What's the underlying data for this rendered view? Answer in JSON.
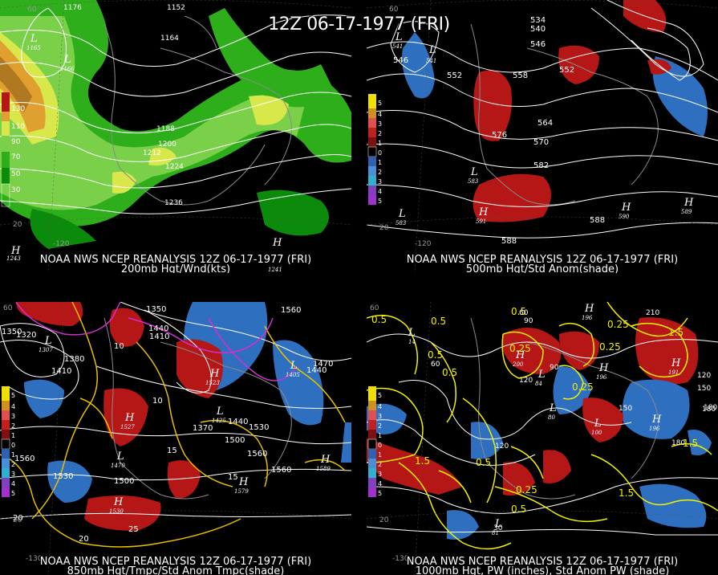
{
  "title": "12Z 06-17-1977 (FRI)",
  "panels": [
    {
      "caption1": "NOAA NWS NCEP REANALYSIS 12Z 06-17-1977 (FRI)",
      "caption2": "200mb Hgt/Wnd(kts)",
      "legend": [
        "130",
        "110",
        "90",
        "70",
        "50",
        "30"
      ],
      "contour_labels": [
        "1176",
        "1152",
        "1164",
        "1188",
        "1200",
        "1212",
        "1224",
        "1236"
      ],
      "pressure_marks": [
        {
          "letter": "L",
          "value": "1165"
        },
        {
          "letter": "L",
          "value": "1166"
        },
        {
          "letter": "H",
          "value": "1243"
        },
        {
          "letter": "H",
          "value": "1241"
        }
      ],
      "grid_labels": [
        "60",
        "20",
        "-120"
      ]
    },
    {
      "caption1": "NOAA NWS NCEP REANALYSIS 12Z 06-17-1977 (FRI)",
      "caption2": "500mb Hgt/Std Anom(shade)",
      "legend": [
        "5",
        "4",
        "3",
        "2",
        "1",
        "0",
        "1",
        "2",
        "3",
        "4",
        "5"
      ],
      "contour_labels": [
        "534",
        "540",
        "546",
        "552",
        "558",
        "552",
        "564",
        "576",
        "570",
        "582",
        "588",
        "588",
        "546"
      ],
      "pressure_marks": [
        {
          "letter": "L",
          "value": "541"
        },
        {
          "letter": "L",
          "value": "541"
        },
        {
          "letter": "L",
          "value": "583"
        },
        {
          "letter": "H",
          "value": "591"
        },
        {
          "letter": "L",
          "value": "583"
        },
        {
          "letter": "H",
          "value": "590"
        },
        {
          "letter": "H",
          "value": "589"
        }
      ],
      "grid_labels": [
        "60",
        "20",
        "-120"
      ]
    },
    {
      "caption1": "NOAA NWS NCEP REANALYSIS 12Z 06-17-1977 (FRI)",
      "caption2": "850mb Hgt/Tmpc/Std Anom Tmpc(shade)",
      "legend": [
        "5",
        "4",
        "3",
        "2",
        "1",
        "0",
        "1",
        "2",
        "3",
        "4",
        "5"
      ],
      "contour_labels": [
        "1320",
        "1350",
        "1440",
        "1410",
        "1380",
        "1410",
        "1350",
        "1320",
        "1560",
        "1470",
        "1440",
        "1370",
        "1440",
        "1500",
        "1530",
        "1560",
        "1560",
        "1530",
        "1500",
        "1560",
        "10",
        "10",
        "15",
        "15",
        "20",
        "25",
        "20"
      ],
      "pressure_marks": [
        {
          "letter": "L",
          "value": "1307"
        },
        {
          "letter": "H",
          "value": "1523"
        },
        {
          "letter": "L",
          "value": "1425"
        },
        {
          "letter": "H",
          "value": "1527"
        },
        {
          "letter": "L",
          "value": "1470"
        },
        {
          "letter": "H",
          "value": "1579"
        },
        {
          "letter": "H",
          "value": "1530"
        },
        {
          "letter": "H",
          "value": "1589"
        },
        {
          "letter": "L",
          "value": "1405"
        }
      ],
      "grid_labels": [
        "60",
        "20",
        "-130"
      ]
    },
    {
      "caption1": "NOAA NWS NCEP REANALYSIS 12Z 06-17-1977 (FRI)",
      "caption2": "1000mb Hgt, PW (inches), Std Anom PW (shade)",
      "legend": [
        "5",
        "4",
        "3",
        "2",
        "1",
        "0",
        "1",
        "2",
        "3",
        "4",
        "5"
      ],
      "contour_labels": [
        "0.5",
        "0.5",
        "0.5",
        "0.5",
        "0.25",
        "0.25",
        "0.25",
        "0.5",
        "1.5",
        "1.5",
        "1.5",
        "0.5",
        "0.25",
        "0.5",
        "0.25",
        "1.5",
        "60",
        "90",
        "120",
        "150",
        "180",
        "210",
        "120",
        "150",
        "180",
        "90",
        "60",
        "30",
        "120",
        "180"
      ],
      "pressure_marks": [
        {
          "letter": "H",
          "value": "196"
        },
        {
          "letter": "L",
          "value": "14"
        },
        {
          "letter": "H",
          "value": "200"
        },
        {
          "letter": "H",
          "value": "196"
        },
        {
          "letter": "L",
          "value": "80"
        },
        {
          "letter": "L",
          "value": "84"
        },
        {
          "letter": "H",
          "value": "191"
        },
        {
          "letter": "L",
          "value": "100"
        },
        {
          "letter": "H",
          "value": "196"
        },
        {
          "letter": "L",
          "value": "81"
        }
      ],
      "grid_labels": [
        "60",
        "20",
        "-130"
      ]
    }
  ],
  "colors": {
    "wind_light": "#7bd04a",
    "wind_mid": "#2eae1a",
    "wind_dark": "#0c8a0c",
    "wind_strong": "#d8e84a",
    "wind_jet": "#e0a030",
    "anom_pos": "#b51616",
    "anom_neg": "#2f6fc0",
    "temp_contour": "#e8c000",
    "pw_contour": "#f0f000",
    "cold_contour": "#d030d0",
    "contour": "#ffffff"
  }
}
